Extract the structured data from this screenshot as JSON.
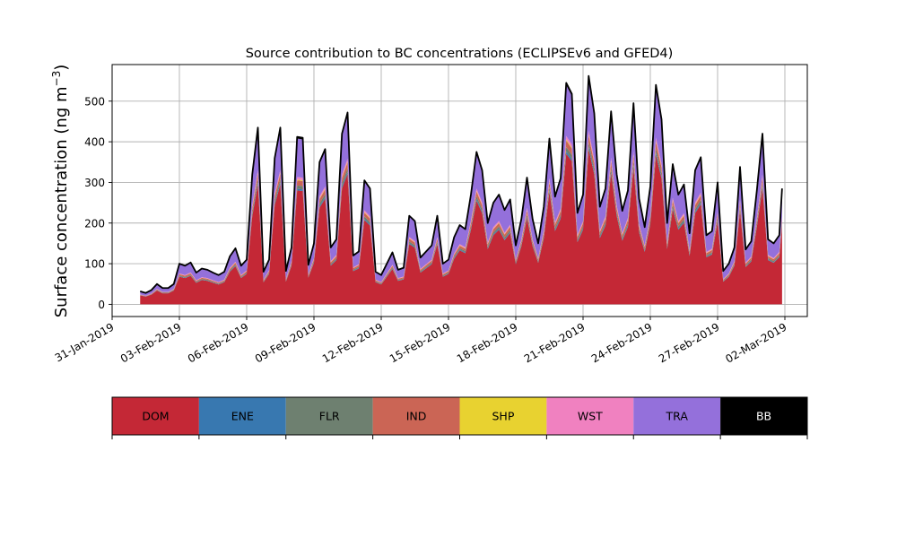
{
  "chart_data": {
    "type": "area",
    "stacked": true,
    "title": "Source contribution to BC concentrations (ECLIPSEv6 and GFED4)",
    "ylabel_main": "Surface concentration (ng m",
    "ylabel_sup": "−3",
    "ylabel_close": ")",
    "ylim": [
      -30,
      590
    ],
    "xlim": [
      "2019-01-31T00:00",
      "2019-03-03T00:00"
    ],
    "yticks": [
      0,
      100,
      200,
      300,
      400,
      500
    ],
    "xticks": [
      {
        "date": "2019-01-31",
        "label": "31-Jan-2019"
      },
      {
        "date": "2019-02-03",
        "label": "03-Feb-2019"
      },
      {
        "date": "2019-02-06",
        "label": "06-Feb-2019"
      },
      {
        "date": "2019-02-09",
        "label": "09-Feb-2019"
      },
      {
        "date": "2019-02-12",
        "label": "12-Feb-2019"
      },
      {
        "date": "2019-02-15",
        "label": "15-Feb-2019"
      },
      {
        "date": "2019-02-18",
        "label": "18-Feb-2019"
      },
      {
        "date": "2019-02-21",
        "label": "21-Feb-2019"
      },
      {
        "date": "2019-02-24",
        "label": "24-Feb-2019"
      },
      {
        "date": "2019-02-27",
        "label": "27-Feb-2019"
      },
      {
        "date": "2019-03-02",
        "label": "02-Mar-2019"
      }
    ],
    "grid": true,
    "legend_placement": "below",
    "series_order": [
      "DOM",
      "ENE",
      "FLR",
      "IND",
      "SHP",
      "WST",
      "TRA",
      "BB"
    ],
    "colors": {
      "DOM": "#c42836",
      "ENE": "#3878b0",
      "FLR": "#6e8070",
      "IND": "#cb6555",
      "SHP": "#e8d230",
      "WST": "#f081c0",
      "TRA": "#9470db",
      "BB": "#000000"
    },
    "total_points": [
      [
        "2019-02-01T06:00",
        32
      ],
      [
        "2019-02-01T12:00",
        28
      ],
      [
        "2019-02-01T18:00",
        35
      ],
      [
        "2019-02-02T00:00",
        50
      ],
      [
        "2019-02-02T06:00",
        40
      ],
      [
        "2019-02-02T12:00",
        40
      ],
      [
        "2019-02-02T18:00",
        50
      ],
      [
        "2019-02-03T00:00",
        100
      ],
      [
        "2019-02-03T06:00",
        95
      ],
      [
        "2019-02-03T12:00",
        103
      ],
      [
        "2019-02-03T18:00",
        78
      ],
      [
        "2019-02-04T00:00",
        88
      ],
      [
        "2019-02-04T06:00",
        85
      ],
      [
        "2019-02-04T12:00",
        78
      ],
      [
        "2019-02-04T18:00",
        72
      ],
      [
        "2019-02-05T00:00",
        80
      ],
      [
        "2019-02-05T06:00",
        118
      ],
      [
        "2019-02-05T12:00",
        138
      ],
      [
        "2019-02-05T18:00",
        95
      ],
      [
        "2019-02-06T00:00",
        110
      ],
      [
        "2019-02-06T06:00",
        320
      ],
      [
        "2019-02-06T12:00",
        435
      ],
      [
        "2019-02-06T18:00",
        80
      ],
      [
        "2019-02-07T00:00",
        110
      ],
      [
        "2019-02-07T06:00",
        360
      ],
      [
        "2019-02-07T12:00",
        435
      ],
      [
        "2019-02-07T18:00",
        82
      ],
      [
        "2019-02-08T00:00",
        140
      ],
      [
        "2019-02-08T06:00",
        412
      ],
      [
        "2019-02-08T12:00",
        410
      ],
      [
        "2019-02-08T18:00",
        97
      ],
      [
        "2019-02-09T00:00",
        150
      ],
      [
        "2019-02-09T06:00",
        350
      ],
      [
        "2019-02-09T12:00",
        382
      ],
      [
        "2019-02-09T18:00",
        140
      ],
      [
        "2019-02-10T00:00",
        160
      ],
      [
        "2019-02-10T06:00",
        420
      ],
      [
        "2019-02-10T12:00",
        472
      ],
      [
        "2019-02-10T18:00",
        120
      ],
      [
        "2019-02-11T00:00",
        130
      ],
      [
        "2019-02-11T06:00",
        305
      ],
      [
        "2019-02-11T12:00",
        285
      ],
      [
        "2019-02-11T18:00",
        80
      ],
      [
        "2019-02-12T00:00",
        72
      ],
      [
        "2019-02-12T06:00",
        100
      ],
      [
        "2019-02-12T12:00",
        128
      ],
      [
        "2019-02-12T18:00",
        85
      ],
      [
        "2019-02-13T00:00",
        90
      ],
      [
        "2019-02-13T06:00",
        218
      ],
      [
        "2019-02-13T12:00",
        205
      ],
      [
        "2019-02-13T18:00",
        115
      ],
      [
        "2019-02-14T00:00",
        130
      ],
      [
        "2019-02-14T06:00",
        145
      ],
      [
        "2019-02-14T12:00",
        218
      ],
      [
        "2019-02-14T18:00",
        100
      ],
      [
        "2019-02-15T00:00",
        110
      ],
      [
        "2019-02-15T06:00",
        165
      ],
      [
        "2019-02-15T12:00",
        195
      ],
      [
        "2019-02-15T18:00",
        185
      ],
      [
        "2019-02-16T00:00",
        270
      ],
      [
        "2019-02-16T06:00",
        375
      ],
      [
        "2019-02-16T12:00",
        330
      ],
      [
        "2019-02-16T18:00",
        200
      ],
      [
        "2019-02-17T00:00",
        250
      ],
      [
        "2019-02-17T06:00",
        270
      ],
      [
        "2019-02-17T12:00",
        232
      ],
      [
        "2019-02-17T18:00",
        258
      ],
      [
        "2019-02-18T00:00",
        145
      ],
      [
        "2019-02-18T06:00",
        210
      ],
      [
        "2019-02-18T12:00",
        312
      ],
      [
        "2019-02-18T18:00",
        210
      ],
      [
        "2019-02-19T00:00",
        150
      ],
      [
        "2019-02-19T06:00",
        240
      ],
      [
        "2019-02-19T12:00",
        408
      ],
      [
        "2019-02-19T18:00",
        265
      ],
      [
        "2019-02-20T00:00",
        310
      ],
      [
        "2019-02-20T06:00",
        545
      ],
      [
        "2019-02-20T12:00",
        518
      ],
      [
        "2019-02-20T18:00",
        225
      ],
      [
        "2019-02-21T00:00",
        270
      ],
      [
        "2019-02-21T06:00",
        562
      ],
      [
        "2019-02-21T12:00",
        470
      ],
      [
        "2019-02-21T18:00",
        240
      ],
      [
        "2019-02-22T00:00",
        285
      ],
      [
        "2019-02-22T06:00",
        475
      ],
      [
        "2019-02-22T12:00",
        320
      ],
      [
        "2019-02-22T18:00",
        230
      ],
      [
        "2019-02-23T00:00",
        280
      ],
      [
        "2019-02-23T06:00",
        495
      ],
      [
        "2019-02-23T12:00",
        260
      ],
      [
        "2019-02-23T18:00",
        190
      ],
      [
        "2019-02-24T00:00",
        290
      ],
      [
        "2019-02-24T06:00",
        540
      ],
      [
        "2019-02-24T12:00",
        455
      ],
      [
        "2019-02-24T18:00",
        200
      ],
      [
        "2019-02-25T00:00",
        345
      ],
      [
        "2019-02-25T06:00",
        270
      ],
      [
        "2019-02-25T12:00",
        295
      ],
      [
        "2019-02-25T18:00",
        175
      ],
      [
        "2019-02-26T00:00",
        330
      ],
      [
        "2019-02-26T06:00",
        362
      ],
      [
        "2019-02-26T12:00",
        170
      ],
      [
        "2019-02-26T18:00",
        180
      ],
      [
        "2019-02-27T00:00",
        300
      ],
      [
        "2019-02-27T06:00",
        82
      ],
      [
        "2019-02-27T12:00",
        100
      ],
      [
        "2019-02-27T18:00",
        140
      ],
      [
        "2019-02-28T00:00",
        338
      ],
      [
        "2019-02-28T06:00",
        135
      ],
      [
        "2019-02-28T12:00",
        155
      ],
      [
        "2019-02-28T18:00",
        280
      ],
      [
        "2019-03-01T00:00",
        420
      ],
      [
        "2019-03-01T06:00",
        160
      ],
      [
        "2019-03-01T12:00",
        150
      ],
      [
        "2019-03-01T18:00",
        170
      ],
      [
        "2019-03-01T21:00",
        285
      ]
    ],
    "fractions": {
      "DOM": 0.68,
      "ENE": 0.01,
      "FLR": 0.02,
      "IND": 0.03,
      "SHP": 0.005,
      "WST": 0.015,
      "TRA": 0.23,
      "BB": 0.01
    }
  },
  "legend": [
    {
      "label": "DOM",
      "color": "#c42836",
      "text_color": "#000000"
    },
    {
      "label": "ENE",
      "color": "#3878b0",
      "text_color": "#000000"
    },
    {
      "label": "FLR",
      "color": "#6e8070",
      "text_color": "#000000"
    },
    {
      "label": "IND",
      "color": "#cb6555",
      "text_color": "#000000"
    },
    {
      "label": "SHP",
      "color": "#e8d230",
      "text_color": "#000000"
    },
    {
      "label": "WST",
      "color": "#f081c0",
      "text_color": "#000000"
    },
    {
      "label": "TRA",
      "color": "#9470db",
      "text_color": "#000000"
    },
    {
      "label": "BB",
      "color": "#000000",
      "text_color": "#ffffff"
    }
  ]
}
